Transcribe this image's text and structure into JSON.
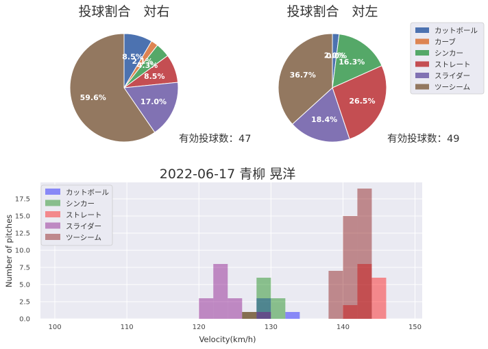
{
  "chart_data": [
    {
      "type": "pie",
      "title": "投球割合　対右",
      "annotation": "有効投球数：47",
      "slices": [
        {
          "label": "カットボール",
          "value": 8.5,
          "display": "8.5%"
        },
        {
          "label": "カーブ",
          "value": 2.1,
          "display": "2.1%"
        },
        {
          "label": "シンカー",
          "value": 4.3,
          "display": "4.3%"
        },
        {
          "label": "ストレート",
          "value": 8.5,
          "display": "8.5%"
        },
        {
          "label": "スライダー",
          "value": 17.0,
          "display": "17.0%"
        },
        {
          "label": "ツーシーム",
          "value": 59.6,
          "display": "59.6%"
        }
      ]
    },
    {
      "type": "pie",
      "title": "投球割合　対左",
      "annotation": "有効投球数：49",
      "slices": [
        {
          "label": "カットボール",
          "value": 2.0,
          "display": "2.0%"
        },
        {
          "label": "カーブ",
          "value": 0.0,
          "display": "0.0%"
        },
        {
          "label": "シンカー",
          "value": 16.3,
          "display": "16.3%"
        },
        {
          "label": "ストレート",
          "value": 26.5,
          "display": "26.5%"
        },
        {
          "label": "スライダー",
          "value": 18.4,
          "display": "18.4%"
        },
        {
          "label": "ツーシーム",
          "value": 36.7,
          "display": "36.7%"
        }
      ],
      "legend": {
        "placement": "right",
        "entries": [
          "カットボール",
          "カーブ",
          "シンカー",
          "ストレート",
          "スライダー",
          "ツーシーム"
        ]
      }
    },
    {
      "type": "histogram",
      "title": "2022-06-17 青柳 晃洋",
      "xlabel": "Velocity(km/h)",
      "ylabel": "Number of pitches",
      "xlim": [
        98,
        151
      ],
      "ylim": [
        0,
        19.9
      ],
      "xticks": [
        "100",
        "110",
        "120",
        "130",
        "140",
        "150"
      ],
      "yticks": [
        "0.0",
        "2.5",
        "5.0",
        "7.5",
        "10.0",
        "12.5",
        "15.0",
        "17.5"
      ],
      "grid": true,
      "legend": {
        "placement": "top-left",
        "entries": [
          "カットボール",
          "シンカー",
          "ストレート",
          "スライダー",
          "ツーシーム"
        ]
      },
      "series": [
        {
          "name": "カットボール",
          "bins": [
            [
              128,
              130,
              3
            ],
            [
              132,
              134,
              1
            ]
          ]
        },
        {
          "name": "シンカー",
          "bins": [
            [
              126,
              128,
              1
            ],
            [
              128,
              130,
              6
            ],
            [
              130,
              132,
              3
            ]
          ]
        },
        {
          "name": "ストレート",
          "bins": [
            [
              140,
              142,
              2
            ],
            [
              142,
              144,
              8
            ],
            [
              144,
              146,
              6
            ]
          ]
        },
        {
          "name": "スライダー",
          "bins": [
            [
              120,
              122,
              3
            ],
            [
              122,
              124,
              8
            ],
            [
              124,
              126,
              3
            ],
            [
              128,
              130,
              1
            ]
          ]
        },
        {
          "name": "ツーシーム",
          "bins": [
            [
              126,
              128,
              1
            ],
            [
              138,
              140,
              7
            ],
            [
              140,
              142,
              15
            ],
            [
              142,
              144,
              19
            ]
          ]
        }
      ]
    }
  ],
  "colors": {
    "pie": {
      "カットボール": "#4c72b0",
      "カーブ": "#dd8452",
      "シンカー": "#55a868",
      "ストレート": "#c44e52",
      "スライダー": "#8172b3",
      "ツーシーム": "#937860"
    },
    "hist": {
      "カットボール": "#0000ff",
      "シンカー": "#008000",
      "ストレート": "#ff0000",
      "スライダー": "#800080",
      "ツーシーム": "#800000"
    },
    "axes_bg": "#eaeaf2",
    "grid": "#ffffff"
  }
}
